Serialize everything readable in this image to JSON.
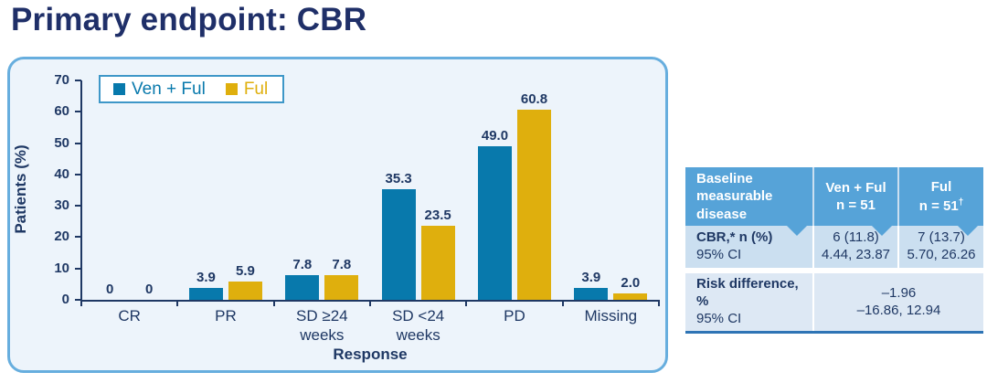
{
  "page": {
    "title": "Primary endpoint: CBR"
  },
  "colors": {
    "title_navy": "#1F2F68",
    "text_navy": "#1F3864",
    "panel_border": "#67AEDE",
    "panel_bg": "#EDF4FB",
    "series_blue": "#0879AC",
    "series_yellow": "#DFAF0D",
    "table_header_bg": "#56A3D8",
    "table_row1_bg": "#CBDFF0",
    "table_row2_bg": "#DDE8F4",
    "table_bottom_border": "#2E74B5"
  },
  "chart_data": {
    "type": "bar",
    "title": "",
    "categories": [
      "CR",
      "PR",
      "SD ≥24\nweeks",
      "SD <24\nweeks",
      "PD",
      "Missing"
    ],
    "series": [
      {
        "name": "Ven + Ful",
        "color": "#0879AC",
        "values": [
          0,
          3.9,
          7.8,
          35.3,
          49.0,
          3.9
        ],
        "labels": [
          "0",
          "3.9",
          "7.8",
          "35.3",
          "49.0",
          "3.9"
        ]
      },
      {
        "name": "Ful",
        "color": "#DFAF0D",
        "values": [
          0,
          5.9,
          7.8,
          23.5,
          60.8,
          2.0
        ],
        "labels": [
          "0",
          "5.9",
          "7.8",
          "23.5",
          "60.8",
          "2.0"
        ]
      }
    ],
    "xlabel": "Response",
    "ylabel": "Patients (%)",
    "ylim": [
      0,
      70
    ],
    "yticks": [
      0,
      10,
      20,
      30,
      40,
      50,
      60,
      70
    ],
    "grid": false,
    "legend_position": "top-left"
  },
  "table": {
    "header": {
      "col1": "Baseline measurable disease",
      "col2_line1": "Ven + Ful",
      "col2_line2": "n = 51",
      "col3_line1": "Ful",
      "col3_line2": "n = 51",
      "col3_sup": "†"
    },
    "row1": {
      "label1": "CBR,* n (%)",
      "label2": "95% CI",
      "venful_line1": "6 (11.8)",
      "venful_line2": "4.44, 23.87",
      "ful_line1": "7 (13.7)",
      "ful_line2": "5.70, 26.26"
    },
    "row2": {
      "label1": "Risk difference, %",
      "label2": "95% CI",
      "value_line1": "–1.96",
      "value_line2": "–16.86, 12.94"
    }
  }
}
